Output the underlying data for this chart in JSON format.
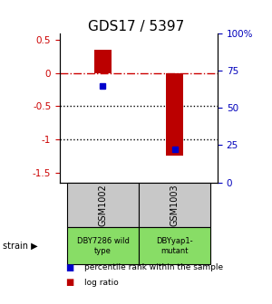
{
  "title": "GDS17 / 5397",
  "samples": [
    "GSM1002",
    "GSM1003"
  ],
  "log_ratios": [
    0.35,
    -1.25
  ],
  "percentile_ranks_pct": [
    65,
    22
  ],
  "strain_labels": [
    "DBY7286 wild\ntype",
    "DBYyap1-\nmutant"
  ],
  "ylim": [
    -1.65,
    0.6
  ],
  "left_yticks": [
    0.5,
    0,
    -0.5,
    -1.0,
    -1.5
  ],
  "right_yticks_pct": [
    100,
    75,
    50,
    25,
    0
  ],
  "left_color": "#cc0000",
  "right_color": "#0000bb",
  "bar_color": "#bb0000",
  "blue_marker_color": "#0000cc",
  "bg_color": "#ffffff",
  "label_bg_gray": "#c8c8c8",
  "label_bg_green": "#88dd66",
  "zero_line_color": "#cc0000",
  "dotted_line_color": "#000000",
  "bar_width": 0.25,
  "strain_arrow_label": "strain",
  "legend_items": [
    {
      "label": "log ratio",
      "color": "#bb0000"
    },
    {
      "label": "percentile rank within the sample",
      "color": "#0000cc"
    }
  ],
  "figsize": [
    3.0,
    3.36
  ],
  "dpi": 100
}
